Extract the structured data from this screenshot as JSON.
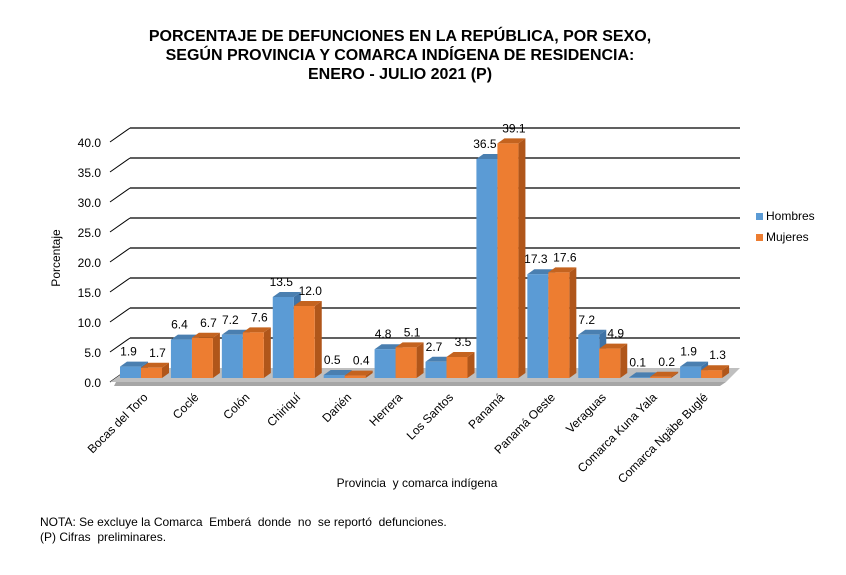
{
  "chart_data": {
    "type": "bar",
    "style": "3d-clustered-column",
    "title": [
      "PORCENTAJE DE DEFUNCIONES EN LA REPÚBLICA, POR SEXO,",
      "SEGÚN PROVINCIA Y COMARCA INDÍGENA DE RESIDENCIA:",
      "ENERO - JULIO 2021 (P)"
    ],
    "xlabel": "Provincia  y comarca indígena",
    "ylabel": "Porcentaje",
    "ylim": [
      0,
      40
    ],
    "yticks": [
      "0.0",
      "5.0",
      "10.0",
      "15.0",
      "20.0",
      "25.0",
      "30.0",
      "35.0",
      "40.0"
    ],
    "grid": true,
    "legend_position": "right",
    "categories": [
      "Bocas del Toro",
      "Coclé",
      "Colón",
      "Chiriquí",
      "Darién",
      "Herrera",
      "Los Santos",
      "Panamá",
      "Panamá Oeste",
      "Veraguas",
      "Comarca Kuna Yala",
      "Comarca Ngäbe Buglé"
    ],
    "series": [
      {
        "name": "Hombres",
        "color": "#5b9bd5",
        "values": [
          1.9,
          6.4,
          7.2,
          13.5,
          0.5,
          4.8,
          2.7,
          36.5,
          17.3,
          7.2,
          0.1,
          1.9
        ],
        "labels": [
          "1.9",
          "6.4",
          "7.2",
          "13.5",
          "0.5",
          "4.8",
          "2.7",
          "36.5",
          "17.3",
          "7.2",
          "0.1",
          "1.9"
        ]
      },
      {
        "name": "Mujeres",
        "color": "#ed7d31",
        "values": [
          1.7,
          6.7,
          7.6,
          12.0,
          0.4,
          5.1,
          3.5,
          39.1,
          17.6,
          4.9,
          0.2,
          1.3
        ],
        "labels": [
          "1.7",
          "6.7",
          "7.6",
          "12.0",
          "0.4",
          "5.1",
          "3.5",
          "39.1",
          "17.6",
          "4.9",
          "0.2",
          "1.3"
        ]
      }
    ]
  },
  "notes": {
    "line1": "NOTA: Se excluye la Comarca  Emberá  donde  no  se reportó  defunciones.",
    "line2": "(P) Cifras  preliminares."
  }
}
